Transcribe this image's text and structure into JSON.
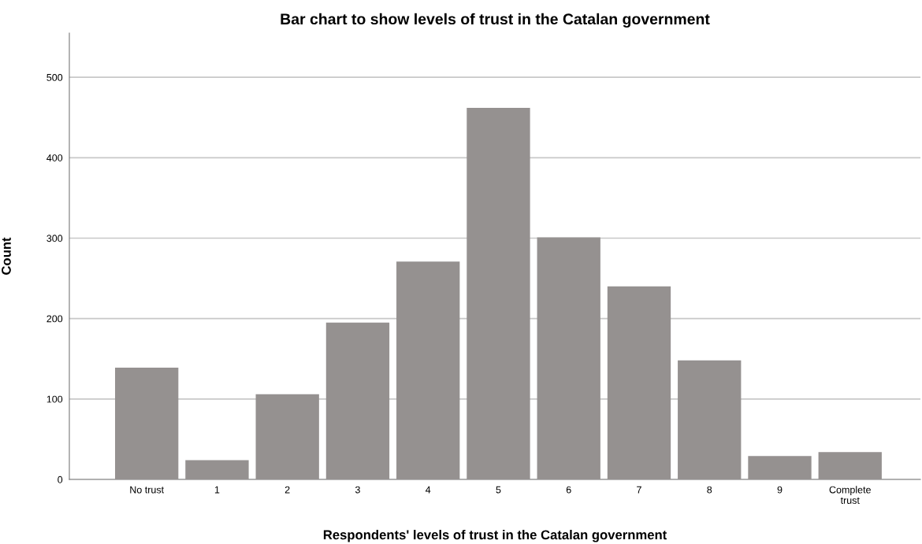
{
  "chart_data": {
    "type": "bar",
    "title": "Bar chart to show levels of trust in the Catalan government",
    "xlabel": "Respondents' levels of trust in the Catalan government",
    "ylabel": "Count",
    "categories": [
      "No trust",
      "1",
      "2",
      "3",
      "4",
      "5",
      "6",
      "7",
      "8",
      "9",
      "Complete\ntrust"
    ],
    "values": [
      139,
      24,
      106,
      195,
      271,
      462,
      301,
      240,
      148,
      29,
      34
    ],
    "color": "#959190",
    "ylim": [
      0,
      555
    ],
    "yticks": [
      0,
      100,
      200,
      300,
      400,
      500
    ],
    "grid": "y",
    "legend": false
  }
}
